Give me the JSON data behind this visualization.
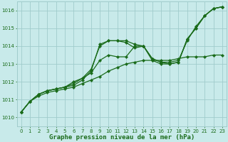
{
  "title": "Graphe pression niveau de la mer (hPa)",
  "xlabel_ticks": [
    0,
    1,
    2,
    3,
    4,
    5,
    6,
    7,
    8,
    9,
    10,
    11,
    12,
    13,
    14,
    15,
    16,
    17,
    18,
    19,
    20,
    21,
    22,
    23
  ],
  "ylim": [
    1009.5,
    1016.5
  ],
  "xlim": [
    -0.5,
    23.5
  ],
  "yticks": [
    1010,
    1011,
    1012,
    1013,
    1014,
    1015,
    1016
  ],
  "bg_color": "#c8eaea",
  "grid_color": "#a0cccc",
  "line_color": "#1a6b1a",
  "lines": [
    {
      "x": [
        0,
        1,
        2,
        3,
        4,
        5,
        6,
        7,
        8,
        9,
        10,
        11,
        12,
        13,
        14,
        15,
        16,
        17,
        18,
        19,
        20,
        21,
        22,
        23
      ],
      "y": [
        1010.3,
        1010.9,
        1011.3,
        1011.5,
        1011.6,
        1011.7,
        1011.8,
        1012.1,
        1012.6,
        1014.1,
        1014.3,
        1014.3,
        1014.3,
        1014.1,
        1014.0,
        1013.3,
        1013.1,
        1013.0,
        1013.1,
        1014.4,
        1015.0,
        1015.7,
        1016.1,
        1016.2
      ]
    },
    {
      "x": [
        0,
        1,
        2,
        3,
        4,
        5,
        6,
        7,
        8,
        9,
        10,
        11,
        12,
        13,
        14,
        15,
        16,
        17,
        18,
        19,
        20,
        21,
        22,
        23
      ],
      "y": [
        1010.3,
        1010.9,
        1011.2,
        1011.4,
        1011.5,
        1011.6,
        1011.7,
        1011.9,
        1012.1,
        1012.3,
        1012.6,
        1012.8,
        1013.0,
        1013.1,
        1013.2,
        1013.2,
        1013.2,
        1013.2,
        1013.3,
        1013.4,
        1013.4,
        1013.4,
        1013.5,
        1013.5
      ]
    },
    {
      "x": [
        0,
        1,
        2,
        3,
        4,
        5,
        6,
        7,
        8,
        9,
        10,
        11,
        12,
        13,
        14,
        15,
        16,
        17,
        18,
        19,
        20,
        21,
        22,
        23
      ],
      "y": [
        1010.3,
        1010.9,
        1011.3,
        1011.5,
        1011.6,
        1011.7,
        1012.0,
        1012.2,
        1012.5,
        1013.2,
        1013.5,
        1013.4,
        1013.4,
        1014.0,
        1014.0,
        1013.3,
        1013.1,
        1013.1,
        1013.2,
        1014.3,
        1015.1,
        1015.7,
        1016.1,
        1016.2
      ]
    },
    {
      "x": [
        0,
        1,
        2,
        3,
        4,
        5,
        6,
        7,
        8,
        9,
        10,
        11,
        12,
        13,
        14,
        15,
        16,
        17,
        18,
        19,
        20,
        21,
        22,
        23
      ],
      "y": [
        1010.3,
        1010.9,
        1011.3,
        1011.5,
        1011.6,
        1011.7,
        1011.9,
        1012.2,
        1012.7,
        1014.0,
        1014.3,
        1014.3,
        1014.2,
        1013.9,
        1014.0,
        1013.2,
        1013.0,
        1013.0,
        1013.1,
        1014.4,
        1015.0,
        1015.7,
        1016.1,
        1016.2
      ]
    }
  ],
  "markersize": 2.2,
  "linewidth": 0.9,
  "label_fontsize": 6.5,
  "title_fontsize": 6.5,
  "tick_fontsize": 5.0
}
